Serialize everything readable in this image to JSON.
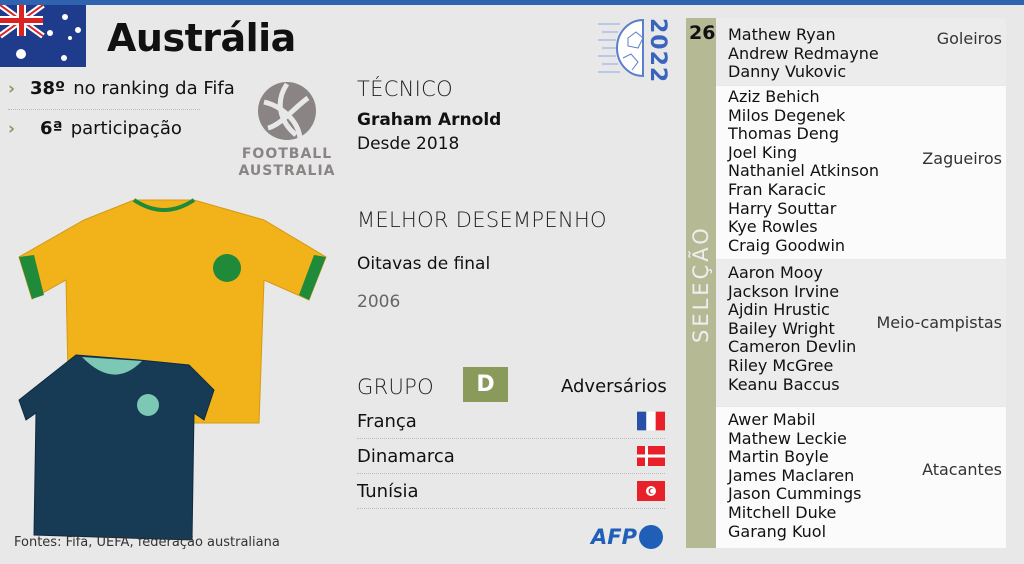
{
  "team": {
    "name": "Austrália",
    "flag": "australia-flag-icon"
  },
  "stats": [
    {
      "value": "38º",
      "label": "no ranking da Fifa"
    },
    {
      "value": "6ª",
      "label": "participação"
    }
  ],
  "logo": {
    "line1": "FOOTBALL",
    "line2": "AUSTRALIA"
  },
  "wc_logo": {
    "year": "2022"
  },
  "coach": {
    "heading": "TÉCNICO",
    "name": "Graham Arnold",
    "since": "Desde 2018"
  },
  "best": {
    "heading": "MELHOR DESEMPENHO",
    "result": "Oitavas de final",
    "year": "2006"
  },
  "group": {
    "heading": "GRUPO",
    "letter": "D",
    "opponents_heading": "Adversários",
    "accent": "#8a9a5b",
    "opponents": [
      {
        "name": "França",
        "flag": "france-flag-icon"
      },
      {
        "name": "Dinamarca",
        "flag": "denmark-flag-icon"
      },
      {
        "name": "Tunísia",
        "flag": "tunisia-flag-icon"
      }
    ]
  },
  "squad": {
    "count": "26",
    "label": "SELEÇÃO",
    "positions": [
      {
        "role": "Goleiros",
        "players": [
          "Mathew Ryan",
          "Andrew Redmayne",
          "Danny Vukovic"
        ]
      },
      {
        "role": "Zagueiros",
        "players": [
          "Aziz Behich",
          "Milos Degenek",
          "Thomas Deng",
          "Joel King",
          "Nathaniel Atkinson",
          "Fran Karacic",
          "Harry Souttar",
          "Kye Rowles",
          "Craig Goodwin"
        ]
      },
      {
        "role": "Meio-campistas",
        "players": [
          "Aaron Mooy",
          "Jackson Irvine",
          "Ajdin Hrustic",
          "Bailey Wright",
          "Cameron Devlin",
          "Riley McGree",
          "Keanu Baccus"
        ]
      },
      {
        "role": "Atacantes",
        "players": [
          "Awer Mabil",
          "Mathew Leckie",
          "Martin Boyle",
          "James Maclaren",
          "Jason Cummings",
          "Mitchell Duke",
          "Garang Kuol"
        ]
      }
    ]
  },
  "source": "Fontes: Fifa, UEFA, federação australiana",
  "credit": "AFP"
}
